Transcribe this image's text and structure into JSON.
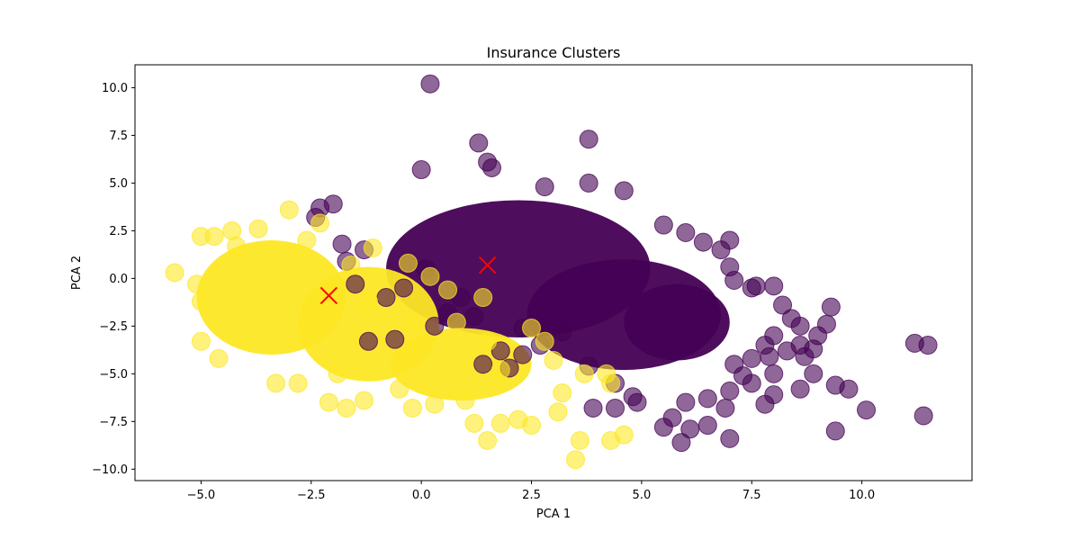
{
  "chart_data": {
    "type": "scatter",
    "title": "Insurance Clusters",
    "xlabel": "PCA 1",
    "ylabel": "PCA 2",
    "xlim": [
      -6.5,
      12.5
    ],
    "ylim": [
      -10.6,
      11.2
    ],
    "xticks": [
      -5.0,
      -2.5,
      0.0,
      2.5,
      5.0,
      7.5,
      10.0
    ],
    "xtick_labels": [
      "−5.0",
      "−2.5",
      "0.0",
      "2.5",
      "5.0",
      "7.5",
      "10.0"
    ],
    "yticks": [
      -10.0,
      -7.5,
      -5.0,
      -2.5,
      0.0,
      2.5,
      5.0,
      7.5,
      10.0
    ],
    "ytick_labels": [
      "−10.0",
      "−7.5",
      "−5.0",
      "−2.5",
      "0.0",
      "2.5",
      "5.0",
      "7.5",
      "10.0"
    ],
    "grid": false,
    "colors": {
      "cluster_0": "#440154",
      "cluster_1": "#fde725",
      "centroid": "#ff0000"
    },
    "series": [
      {
        "cluster": 0,
        "color": "#440154",
        "points": [
          [
            0.2,
            10.2
          ],
          [
            3.8,
            7.3
          ],
          [
            1.3,
            7.1
          ],
          [
            1.5,
            6.1
          ],
          [
            1.6,
            5.8
          ],
          [
            0.0,
            5.7
          ],
          [
            4.6,
            4.6
          ],
          [
            3.8,
            5.0
          ],
          [
            2.8,
            4.8
          ],
          [
            -2.0,
            3.9
          ],
          [
            -2.3,
            3.7
          ],
          [
            -2.4,
            3.2
          ],
          [
            5.5,
            2.8
          ],
          [
            6.0,
            2.4
          ],
          [
            6.4,
            1.9
          ],
          [
            6.8,
            1.5
          ],
          [
            7.0,
            2.0
          ],
          [
            7.0,
            0.6
          ],
          [
            7.1,
            -0.1
          ],
          [
            7.5,
            -0.5
          ],
          [
            7.6,
            -0.4
          ],
          [
            8.0,
            -0.4
          ],
          [
            8.2,
            -1.4
          ],
          [
            8.4,
            -2.1
          ],
          [
            8.6,
            -2.5
          ],
          [
            9.3,
            -1.5
          ],
          [
            9.2,
            -2.4
          ],
          [
            9.0,
            -3.0
          ],
          [
            8.6,
            -3.5
          ],
          [
            8.9,
            -3.7
          ],
          [
            8.7,
            -4.1
          ],
          [
            8.3,
            -3.8
          ],
          [
            8.0,
            -3.0
          ],
          [
            7.8,
            -3.5
          ],
          [
            7.9,
            -4.1
          ],
          [
            7.5,
            -4.2
          ],
          [
            7.1,
            -4.5
          ],
          [
            7.3,
            -5.1
          ],
          [
            8.0,
            -5.0
          ],
          [
            8.9,
            -5.0
          ],
          [
            8.6,
            -5.8
          ],
          [
            8.0,
            -6.1
          ],
          [
            7.8,
            -6.6
          ],
          [
            7.5,
            -5.5
          ],
          [
            7.0,
            -5.9
          ],
          [
            6.5,
            -6.3
          ],
          [
            6.0,
            -6.5
          ],
          [
            6.9,
            -6.8
          ],
          [
            6.5,
            -7.7
          ],
          [
            6.1,
            -7.9
          ],
          [
            5.5,
            -7.8
          ],
          [
            5.7,
            -7.3
          ],
          [
            5.9,
            -8.6
          ],
          [
            7.0,
            -8.4
          ],
          [
            4.9,
            -6.5
          ],
          [
            4.4,
            -6.8
          ],
          [
            3.9,
            -6.8
          ],
          [
            4.8,
            -6.2
          ],
          [
            11.2,
            -3.4
          ],
          [
            11.5,
            -3.5
          ],
          [
            11.4,
            -7.2
          ],
          [
            10.1,
            -6.9
          ],
          [
            9.7,
            -5.8
          ],
          [
            9.4,
            -5.6
          ],
          [
            9.4,
            -8.0
          ],
          [
            -1.2,
            -3.3
          ],
          [
            -0.8,
            -1.0
          ],
          [
            0.1,
            0.5
          ],
          [
            -1.7,
            0.9
          ],
          [
            -1.3,
            1.5
          ],
          [
            -1.8,
            1.8
          ],
          [
            0.6,
            -1.8
          ],
          [
            1.2,
            -2.0
          ],
          [
            2.3,
            -2.6
          ],
          [
            2.7,
            -3.5
          ],
          [
            3.2,
            -2.8
          ],
          [
            1.8,
            -3.8
          ],
          [
            1.4,
            -4.5
          ],
          [
            -0.6,
            -3.2
          ],
          [
            0.3,
            -2.5
          ],
          [
            2.0,
            -4.7
          ],
          [
            3.8,
            -4.6
          ],
          [
            4.4,
            -5.5
          ],
          [
            2.3,
            -4.0
          ],
          [
            0.9,
            -1.0
          ],
          [
            -0.4,
            -0.5
          ],
          [
            -1.5,
            -0.3
          ]
        ]
      },
      {
        "cluster": 1,
        "color": "#fde725",
        "points": [
          [
            -5.6,
            0.3
          ],
          [
            -5.0,
            2.2
          ],
          [
            -4.7,
            2.2
          ],
          [
            -4.3,
            2.5
          ],
          [
            -3.0,
            3.6
          ],
          [
            -2.3,
            2.9
          ],
          [
            -5.1,
            -0.3
          ],
          [
            -5.0,
            -1.2
          ],
          [
            -5.0,
            -3.3
          ],
          [
            -4.6,
            -4.2
          ],
          [
            -2.1,
            -6.5
          ],
          [
            -1.7,
            -6.8
          ],
          [
            -1.3,
            -6.4
          ],
          [
            -0.2,
            -6.8
          ],
          [
            0.3,
            -6.6
          ],
          [
            1.0,
            -6.4
          ],
          [
            1.2,
            -7.6
          ],
          [
            1.5,
            -8.5
          ],
          [
            1.8,
            -7.6
          ],
          [
            2.2,
            -7.4
          ],
          [
            2.5,
            -7.7
          ],
          [
            3.1,
            -7.0
          ],
          [
            3.5,
            -9.5
          ],
          [
            3.6,
            -8.5
          ],
          [
            4.3,
            -8.5
          ],
          [
            4.6,
            -8.2
          ],
          [
            4.3,
            -5.5
          ],
          [
            4.2,
            -5.0
          ],
          [
            3.7,
            -5.0
          ],
          [
            3.2,
            -6.0
          ],
          [
            3.0,
            -4.3
          ],
          [
            2.8,
            -3.3
          ],
          [
            2.5,
            -2.6
          ],
          [
            1.5,
            -3.3
          ],
          [
            1.8,
            -4.8
          ],
          [
            -0.5,
            -5.8
          ],
          [
            -1.9,
            -5.0
          ],
          [
            -2.8,
            -5.5
          ],
          [
            -3.3,
            -5.5
          ],
          [
            -1.6,
            0.7
          ],
          [
            -1.1,
            1.6
          ],
          [
            -0.3,
            0.8
          ],
          [
            0.2,
            0.1
          ],
          [
            0.6,
            -0.6
          ],
          [
            1.4,
            -1.0
          ],
          [
            0.8,
            -2.3
          ],
          [
            -0.2,
            -2.4
          ],
          [
            -1.2,
            -1.2
          ],
          [
            -2.6,
            2.0
          ],
          [
            -3.7,
            2.6
          ],
          [
            -4.2,
            1.7
          ]
        ]
      }
    ],
    "centroids": [
      {
        "cluster": 1,
        "x": -2.1,
        "y": -0.9,
        "color": "#ff0000"
      },
      {
        "cluster": 0,
        "x": 1.5,
        "y": 0.7,
        "color": "#ff0000"
      }
    ]
  }
}
